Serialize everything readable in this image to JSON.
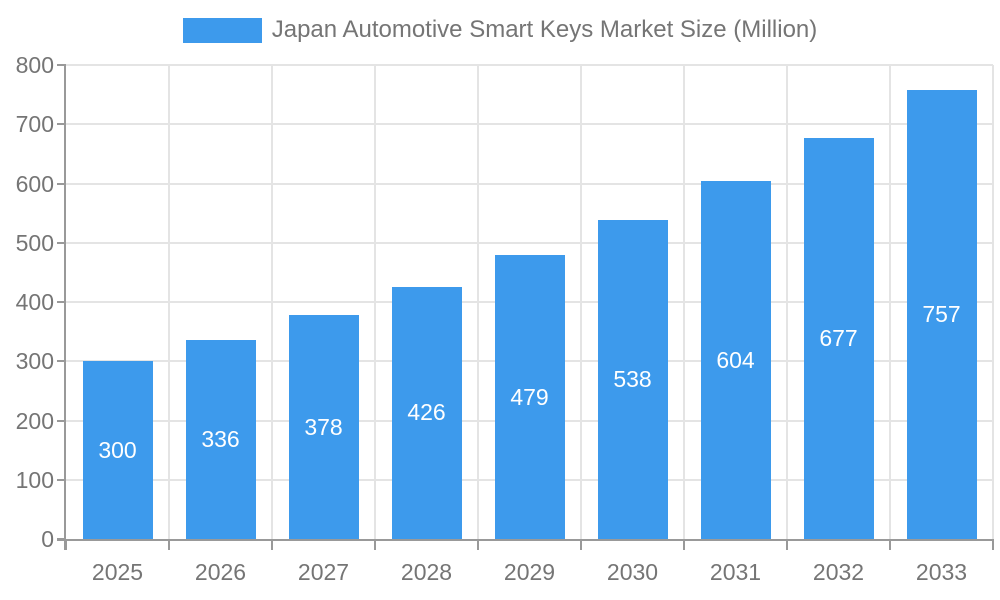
{
  "chart_data": {
    "type": "bar",
    "title": "Japan Automotive Smart Keys Market Size (Million)",
    "legend_position": "top",
    "categories": [
      "2025",
      "2026",
      "2027",
      "2028",
      "2029",
      "2030",
      "2031",
      "2032",
      "2033"
    ],
    "values": [
      300,
      336,
      378,
      426,
      479,
      538,
      604,
      677,
      757
    ],
    "xlabel": "",
    "ylabel": "",
    "ylim": [
      0,
      800
    ],
    "yticks": [
      0,
      100,
      200,
      300,
      400,
      500,
      600,
      700,
      800
    ],
    "grid": true,
    "bar_value_labels": "inside-center",
    "colors": {
      "bar": "#3D9AEC",
      "bar_label": "#FFFFFF",
      "axis": "#999999",
      "grid": "#E4E4E4",
      "tick_text": "#757575",
      "legend_text": "#757575",
      "background": "#FFFFFF"
    }
  }
}
